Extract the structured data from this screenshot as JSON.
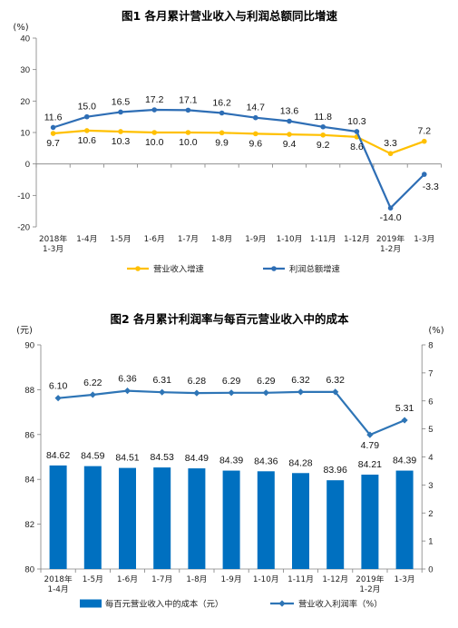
{
  "chart_data": [
    {
      "type": "line",
      "title": "图1 各月累计营业收入与利润总额同比增速",
      "ylabel": "(%)",
      "categories": [
        [
          "2018年",
          "1-3月"
        ],
        [
          "1-4月"
        ],
        [
          "1-5月"
        ],
        [
          "1-6月"
        ],
        [
          "1-7月"
        ],
        [
          "1-8月"
        ],
        [
          "1-9月"
        ],
        [
          "1-10月"
        ],
        [
          "1-11月"
        ],
        [
          "1-12月"
        ],
        [
          "2019年",
          "1-2月"
        ],
        [
          "1-3月"
        ]
      ],
      "ylim": [
        -20,
        40
      ],
      "yticks": [
        40,
        30,
        20,
        10,
        0,
        -10,
        -20
      ],
      "grid": false,
      "legend": "bottom",
      "series": [
        {
          "name": "营业收入增速",
          "color": "#FFC000",
          "values": [
            9.7,
            10.6,
            10.3,
            10.0,
            10.0,
            9.9,
            9.6,
            9.4,
            9.2,
            8.6,
            3.3,
            7.2
          ]
        },
        {
          "name": "利润总额增速",
          "color": "#2E6EB5",
          "values": [
            11.6,
            15.0,
            16.5,
            17.2,
            17.1,
            16.2,
            14.7,
            13.6,
            11.8,
            10.3,
            -14.0,
            -3.3
          ]
        }
      ]
    },
    {
      "type": "bar",
      "title": "图2 各月累计利润率与每百元营业收入中的成本",
      "ylabel_left": "(元)",
      "ylabel_right": "(%)",
      "categories": [
        [
          "2018年",
          "1-4月"
        ],
        [
          "1-5月"
        ],
        [
          "1-6月"
        ],
        [
          "1-7月"
        ],
        [
          "1-8月"
        ],
        [
          "1-9月"
        ],
        [
          "1-10月"
        ],
        [
          "1-11月"
        ],
        [
          "1-12月"
        ],
        [
          "2019年",
          "1-2月"
        ],
        [
          "1-3月"
        ]
      ],
      "ylim_left": [
        80,
        90
      ],
      "yticks_left": [
        90,
        88,
        86,
        84,
        82,
        80
      ],
      "ylim_right": [
        0,
        8
      ],
      "yticks_right": [
        8,
        7,
        6,
        5,
        4,
        3,
        2,
        1,
        0
      ],
      "grid": false,
      "legend": "bottom",
      "series": [
        {
          "name": "每百元营业收入中的成本（元）",
          "type": "bar",
          "axis": "left",
          "color": "#0070C0",
          "values": [
            84.62,
            84.59,
            84.51,
            84.53,
            84.49,
            84.39,
            84.36,
            84.28,
            83.96,
            84.21,
            84.39
          ]
        },
        {
          "name": "营业收入利润率（%）",
          "type": "line",
          "axis": "right",
          "color": "#2E75B6",
          "values": [
            6.1,
            6.22,
            6.36,
            6.31,
            6.28,
            6.29,
            6.29,
            6.32,
            6.32,
            4.79,
            5.31
          ]
        }
      ]
    }
  ]
}
